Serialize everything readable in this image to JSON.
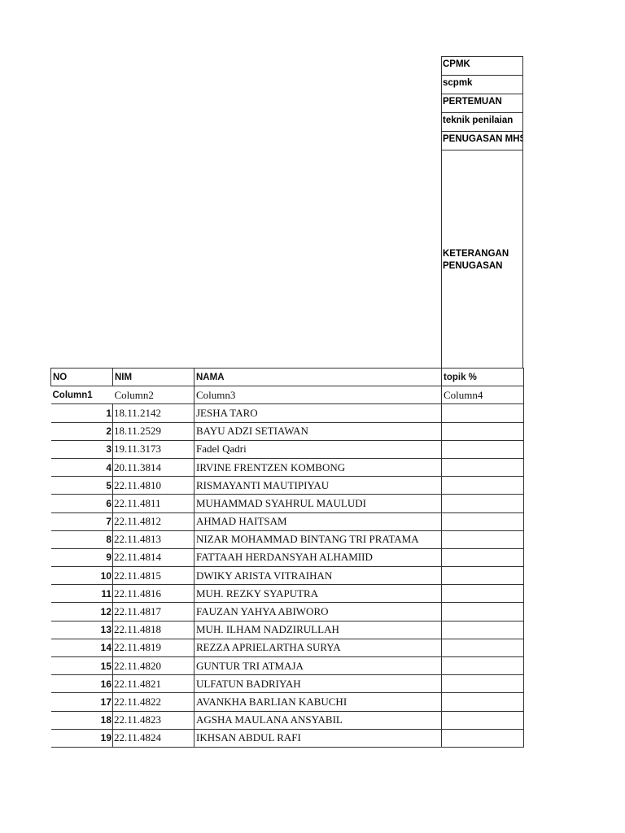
{
  "header_cells": [
    "CPMK",
    "scpmk",
    "PERTEMUAN",
    "teknik penilaian",
    "PENUGASAN MHS"
  ],
  "keterangan": "KETERANGAN PENUGASAN",
  "columns": {
    "no": "NO",
    "nim": "NIM",
    "nama": "NAMA",
    "topik": "topik  %"
  },
  "sub_columns": {
    "c1": "Column1",
    "c2": "Column2",
    "c3": "Column3",
    "c4": "Column4"
  },
  "rows": [
    {
      "no": "1",
      "nim": "18.11.2142",
      "nama": "JESHA TARO"
    },
    {
      "no": "2",
      "nim": "18.11.2529",
      "nama": "BAYU ADZI SETIAWAN"
    },
    {
      "no": "3",
      "nim": "19.11.3173",
      "nama": "Fadel Qadri"
    },
    {
      "no": "4",
      "nim": "20.11.3814",
      "nama": "IRVINE FRENTZEN KOMBONG"
    },
    {
      "no": "5",
      "nim": "22.11.4810",
      "nama": "RISMAYANTI MAUTIPIYAU"
    },
    {
      "no": "6",
      "nim": "22.11.4811",
      "nama": "MUHAMMAD SYAHRUL MAULUDI"
    },
    {
      "no": "7",
      "nim": "22.11.4812",
      "nama": "AHMAD HAITSAM"
    },
    {
      "no": "8",
      "nim": "22.11.4813",
      "nama": "NIZAR MOHAMMAD BINTANG TRI PRATAMA"
    },
    {
      "no": "9",
      "nim": "22.11.4814",
      "nama": "FATTAAH HERDANSYAH ALHAMIID"
    },
    {
      "no": "10",
      "nim": "22.11.4815",
      "nama": "DWIKY ARISTA VITRAIHAN"
    },
    {
      "no": "11",
      "nim": "22.11.4816",
      "nama": "MUH. REZKY SYAPUTRA"
    },
    {
      "no": "12",
      "nim": "22.11.4817",
      "nama": "FAUZAN YAHYA ABIWORO"
    },
    {
      "no": "13",
      "nim": "22.11.4818",
      "nama": "MUH. ILHAM NADZIRULLAH"
    },
    {
      "no": "14",
      "nim": "22.11.4819",
      "nama": "REZZA APRIELARTHA SURYA"
    },
    {
      "no": "15",
      "nim": "22.11.4820",
      "nama": "GUNTUR TRI ATMAJA"
    },
    {
      "no": "16",
      "nim": "22.11.4821",
      "nama": "ULFATUN BADRIYAH"
    },
    {
      "no": "17",
      "nim": "22.11.4822",
      "nama": "AVANKHA BARLIAN KABUCHI"
    },
    {
      "no": "18",
      "nim": "22.11.4823",
      "nama": "AGSHA MAULANA ANSYABIL"
    },
    {
      "no": "19",
      "nim": "22.11.4824",
      "nama": "IKHSAN ABDUL RAFI"
    }
  ]
}
